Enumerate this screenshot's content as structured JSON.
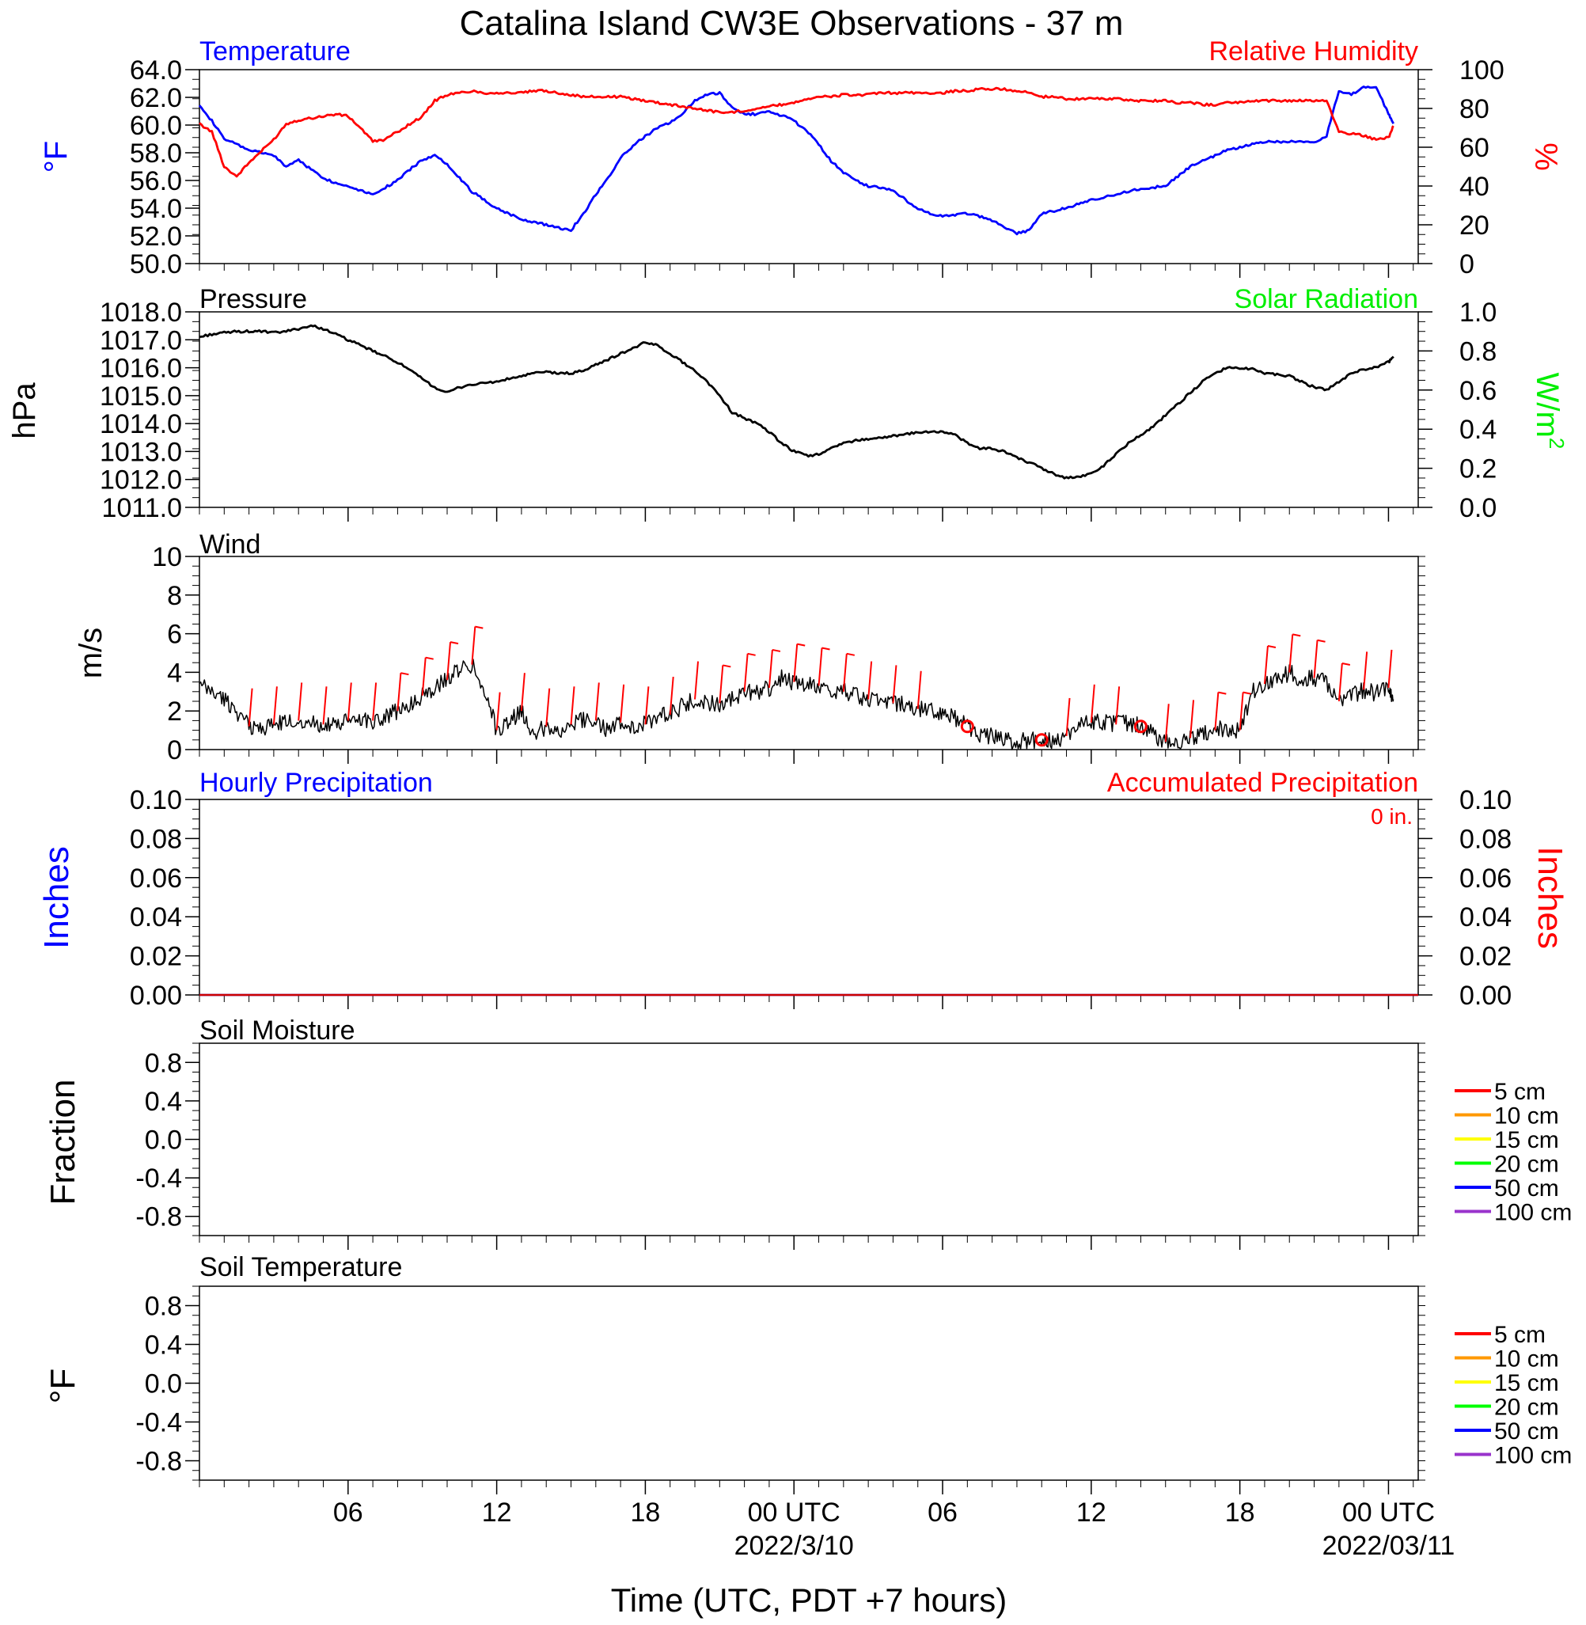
{
  "title": "Catalina Island CW3E Observations - 37 m",
  "xlabel": "Time (UTC, PDT +7 hours)",
  "time_axis": {
    "ticks": [
      {
        "h": 6,
        "label": "06",
        "date": ""
      },
      {
        "h": 12,
        "label": "12",
        "date": ""
      },
      {
        "h": 18,
        "label": "18",
        "date": ""
      },
      {
        "h": 24,
        "label": "00 UTC",
        "date": "2022/3/10"
      },
      {
        "h": 30,
        "label": "06",
        "date": ""
      },
      {
        "h": 36,
        "label": "12",
        "date": ""
      },
      {
        "h": 42,
        "label": "18",
        "date": ""
      },
      {
        "h": 48,
        "label": "00 UTC",
        "date": "2022/03/11"
      }
    ]
  },
  "chart_data": [
    {
      "panel": "temperature_rh",
      "type": "line",
      "left_title": "Temperature",
      "right_title": "Relative Humidity",
      "left_ylabel": "°F",
      "right_ylabel": "%",
      "left_ylim": [
        50,
        64
      ],
      "right_ylim": [
        0,
        100
      ],
      "left_ticks": [
        "50.0",
        "52.0",
        "54.0",
        "56.0",
        "58.0",
        "60.0",
        "62.0",
        "64.0"
      ],
      "right_ticks": [
        "0",
        "20",
        "40",
        "60",
        "80",
        "100"
      ],
      "x": [
        0,
        0.5,
        1,
        1.5,
        2,
        2.5,
        3,
        3.5,
        4,
        4.5,
        5,
        5.5,
        6,
        6.5,
        7,
        7.5,
        8,
        8.5,
        9,
        9.5,
        10,
        10.5,
        11,
        11.5,
        12,
        12.5,
        13,
        13.5,
        14,
        14.5,
        15,
        15.5,
        16,
        16.5,
        17,
        17.5,
        18,
        18.5,
        19,
        19.5,
        20,
        20.5,
        21,
        21.5,
        22,
        22.5,
        23,
        23.5,
        24,
        24.5,
        25,
        25.5,
        26,
        26.5,
        27,
        27.5,
        28,
        28.5,
        29,
        29.5,
        30,
        30.5,
        31,
        31.5,
        32,
        32.5,
        33,
        33.5,
        34,
        34.5,
        35,
        35.5,
        36,
        36.5,
        37,
        37.5,
        38,
        38.5,
        39,
        39.5,
        40,
        40.5,
        41,
        41.5,
        42,
        42.5,
        43,
        43.5,
        44,
        44.5,
        45,
        45.5,
        46,
        46.5,
        47,
        47.5,
        48,
        48.2
      ],
      "series": [
        {
          "name": "Temperature",
          "color": "#0000ff",
          "axis": "left",
          "values": [
            61.5,
            60.3,
            59.0,
            58.6,
            58.2,
            58.0,
            57.8,
            57.0,
            57.5,
            56.8,
            56.2,
            55.8,
            55.6,
            55.3,
            55.0,
            55.5,
            56.0,
            56.8,
            57.5,
            57.8,
            57.2,
            56.2,
            55.2,
            54.6,
            54.0,
            53.6,
            53.2,
            53.0,
            52.8,
            52.6,
            52.4,
            53.6,
            55.0,
            56.2,
            57.6,
            58.5,
            59.2,
            59.8,
            60.2,
            60.8,
            61.8,
            62.2,
            62.3,
            61.3,
            60.8,
            60.8,
            61.0,
            60.7,
            60.3,
            59.6,
            58.6,
            57.4,
            56.6,
            56.0,
            55.6,
            55.5,
            55.3,
            54.6,
            54.0,
            53.6,
            53.4,
            53.5,
            53.6,
            53.4,
            53.1,
            52.6,
            52.2,
            52.4,
            53.6,
            53.8,
            54.0,
            54.3,
            54.6,
            54.8,
            55.0,
            55.2,
            55.4,
            55.5,
            55.6,
            56.3,
            57.0,
            57.4,
            57.8,
            58.2,
            58.4,
            58.6,
            58.8,
            58.8,
            58.8,
            58.8,
            58.8,
            59.2,
            62.5,
            62.2,
            62.7,
            62.8,
            60.8,
            60.1
          ]
        },
        {
          "name": "Relative Humidity",
          "color": "#ff0000",
          "axis": "right",
          "values": [
            72,
            68,
            50,
            45,
            52,
            58,
            64,
            72,
            74,
            75,
            76,
            77,
            76,
            70,
            63,
            64,
            68,
            72,
            76,
            84,
            87,
            88,
            89,
            88,
            88,
            88,
            88,
            89,
            89,
            88,
            87,
            86,
            86,
            86,
            86,
            85,
            84,
            83,
            82,
            81,
            80,
            79,
            78,
            78,
            79,
            80,
            81,
            82,
            83,
            85,
            86,
            86,
            87,
            87,
            87,
            88,
            88,
            88,
            88,
            88,
            88,
            89,
            89,
            90,
            90,
            90,
            89,
            88,
            86,
            86,
            85,
            85,
            85,
            85,
            85,
            84,
            84,
            84,
            84,
            83,
            83,
            82,
            82,
            83,
            83,
            84,
            84,
            84,
            84,
            84,
            84,
            84,
            68,
            67,
            66,
            64,
            65,
            71
          ]
        }
      ]
    },
    {
      "panel": "pressure_solar",
      "type": "line",
      "left_title": "Pressure",
      "right_title": "Solar Radiation",
      "left_ylabel": "hPa",
      "right_ylabel": "W/m",
      "right_ylabel_sup": "2",
      "left_ylim": [
        1011,
        1018
      ],
      "right_ylim": [
        0,
        1
      ],
      "left_ticks": [
        "1011.0",
        "1012.0",
        "1013.0",
        "1014.0",
        "1015.0",
        "1016.0",
        "1017.0",
        "1018.0"
      ],
      "right_ticks": [
        "0.0",
        "0.2",
        "0.4",
        "0.6",
        "0.8",
        "1.0"
      ],
      "x": [
        0,
        0.5,
        1,
        1.5,
        2,
        2.5,
        3,
        3.5,
        4,
        4.5,
        5,
        5.5,
        6,
        6.5,
        7,
        7.5,
        8,
        8.5,
        9,
        9.5,
        10,
        10.5,
        11,
        11.5,
        12,
        12.5,
        13,
        13.5,
        14,
        14.5,
        15,
        15.5,
        16,
        16.5,
        17,
        17.5,
        18,
        18.5,
        19,
        19.5,
        20,
        20.5,
        21,
        21.5,
        22,
        22.5,
        23,
        23.5,
        24,
        24.5,
        25,
        25.5,
        26,
        26.5,
        27,
        27.5,
        28,
        28.5,
        29,
        29.5,
        30,
        30.5,
        31,
        31.5,
        32,
        32.5,
        33,
        33.5,
        34,
        34.5,
        35,
        35.5,
        36,
        36.5,
        37,
        37.5,
        38,
        38.5,
        39,
        39.5,
        40,
        40.5,
        41,
        41.5,
        42,
        42.5,
        43,
        43.5,
        44,
        44.5,
        45,
        45.5,
        46,
        46.5,
        47,
        47.5,
        48,
        48.2
      ],
      "series": [
        {
          "name": "Pressure",
          "color": "#000000",
          "axis": "left",
          "values": [
            1017.1,
            1017.2,
            1017.25,
            1017.3,
            1017.3,
            1017.3,
            1017.25,
            1017.3,
            1017.4,
            1017.5,
            1017.4,
            1017.2,
            1017.0,
            1016.8,
            1016.6,
            1016.4,
            1016.2,
            1015.9,
            1015.6,
            1015.3,
            1015.1,
            1015.3,
            1015.4,
            1015.45,
            1015.5,
            1015.6,
            1015.7,
            1015.8,
            1015.85,
            1015.8,
            1015.8,
            1015.9,
            1016.1,
            1016.3,
            1016.5,
            1016.7,
            1016.9,
            1016.8,
            1016.5,
            1016.2,
            1015.9,
            1015.5,
            1015.0,
            1014.4,
            1014.2,
            1014.0,
            1013.7,
            1013.3,
            1013.0,
            1012.85,
            1012.9,
            1013.1,
            1013.3,
            1013.4,
            1013.45,
            1013.5,
            1013.55,
            1013.6,
            1013.7,
            1013.7,
            1013.7,
            1013.6,
            1013.3,
            1013.1,
            1013.1,
            1013.0,
            1012.8,
            1012.6,
            1012.4,
            1012.2,
            1012.05,
            1012.1,
            1012.2,
            1012.5,
            1012.9,
            1013.3,
            1013.6,
            1013.9,
            1014.3,
            1014.7,
            1015.1,
            1015.5,
            1015.8,
            1016.0,
            1016.0,
            1015.95,
            1015.8,
            1015.75,
            1015.7,
            1015.5,
            1015.3,
            1015.2,
            1015.5,
            1015.8,
            1015.95,
            1016.0,
            1016.2,
            1016.4
          ]
        }
      ]
    },
    {
      "panel": "wind",
      "type": "line",
      "left_title": "Wind",
      "left_ylabel": "m/s",
      "left_ylim": [
        0,
        10
      ],
      "left_ticks": [
        "0",
        "2",
        "4",
        "6",
        "8",
        "10"
      ],
      "x": [
        0,
        0.5,
        1,
        1.5,
        2,
        2.5,
        3,
        3.5,
        4,
        4.5,
        5,
        5.5,
        6,
        6.5,
        7,
        7.5,
        8,
        8.5,
        9,
        9.5,
        10,
        10.5,
        11,
        11.5,
        12,
        12.5,
        13,
        13.5,
        14,
        14.5,
        15,
        15.5,
        16,
        16.5,
        17,
        17.5,
        18,
        18.5,
        19,
        19.5,
        20,
        20.5,
        21,
        21.5,
        22,
        22.5,
        23,
        23.5,
        24,
        24.5,
        25,
        25.5,
        26,
        26.5,
        27,
        27.5,
        28,
        28.5,
        29,
        29.5,
        30,
        30.5,
        31,
        31.5,
        32,
        32.5,
        33,
        33.5,
        34,
        34.5,
        35,
        35.5,
        36,
        36.5,
        37,
        37.5,
        38,
        38.5,
        39,
        39.5,
        40,
        40.5,
        41,
        41.5,
        42,
        42.5,
        43,
        43.5,
        44,
        44.5,
        45,
        45.5,
        46,
        46.5,
        47,
        47.5,
        48,
        48.2
      ],
      "series": [
        {
          "name": "Wind",
          "color": "#000000",
          "axis": "left",
          "values": [
            3.3,
            3.0,
            2.6,
            2.0,
            1.2,
            1.1,
            1.3,
            1.4,
            1.5,
            1.4,
            1.3,
            1.2,
            1.5,
            1.6,
            1.5,
            1.7,
            2.0,
            2.3,
            2.8,
            3.2,
            3.6,
            4.2,
            4.4,
            3.2,
            1.0,
            1.4,
            2.0,
            0.8,
            1.2,
            1.0,
            1.3,
            1.6,
            1.5,
            1.0,
            1.4,
            1.2,
            1.3,
            1.7,
            1.8,
            2.3,
            2.6,
            2.4,
            2.4,
            2.6,
            3.0,
            3.0,
            3.2,
            3.7,
            3.5,
            3.3,
            3.3,
            3.1,
            3.0,
            2.8,
            2.6,
            2.4,
            2.4,
            2.3,
            2.1,
            2.1,
            1.9,
            1.6,
            1.2,
            0.8,
            0.7,
            0.5,
            0.4,
            0.5,
            0.5,
            0.5,
            0.7,
            1.2,
            1.4,
            1.4,
            1.3,
            1.4,
            1.2,
            0.8,
            0.4,
            0.4,
            0.6,
            0.9,
            1.0,
            1.1,
            1.0,
            3.0,
            3.4,
            3.6,
            4.0,
            3.6,
            3.7,
            3.5,
            2.5,
            2.8,
            3.1,
            2.9,
            3.2,
            2.6
          ]
        }
      ],
      "barbs": [
        {
          "x": 2,
          "flag": false
        },
        {
          "x": 3,
          "flag": false
        },
        {
          "x": 4,
          "flag": false
        },
        {
          "x": 5,
          "flag": false
        },
        {
          "x": 6,
          "flag": false
        },
        {
          "x": 7,
          "flag": false
        },
        {
          "x": 8,
          "flag": true
        },
        {
          "x": 9,
          "flag": true
        },
        {
          "x": 10,
          "flag": true
        },
        {
          "x": 11,
          "flag": true
        },
        {
          "x": 12,
          "flag": false
        },
        {
          "x": 13,
          "flag": false
        },
        {
          "x": 14,
          "flag": false
        },
        {
          "x": 15,
          "flag": false
        },
        {
          "x": 16,
          "flag": false
        },
        {
          "x": 17,
          "flag": false
        },
        {
          "x": 18,
          "flag": false
        },
        {
          "x": 19,
          "flag": false
        },
        {
          "x": 20,
          "flag": false
        },
        {
          "x": 21,
          "flag": true
        },
        {
          "x": 22,
          "flag": true
        },
        {
          "x": 23,
          "flag": true
        },
        {
          "x": 24,
          "flag": true
        },
        {
          "x": 25,
          "flag": true
        },
        {
          "x": 26,
          "flag": true
        },
        {
          "x": 27,
          "flag": false
        },
        {
          "x": 28,
          "flag": false
        },
        {
          "x": 29,
          "flag": false
        },
        {
          "x": 31,
          "calm": true
        },
        {
          "x": 34,
          "calm": true
        },
        {
          "x": 38,
          "calm": true
        },
        {
          "x": 35,
          "flag": false
        },
        {
          "x": 36,
          "flag": false
        },
        {
          "x": 37,
          "flag": false
        },
        {
          "x": 39,
          "flag": false
        },
        {
          "x": 40,
          "flag": false
        },
        {
          "x": 41,
          "flag": true
        },
        {
          "x": 42,
          "flag": true
        },
        {
          "x": 43,
          "flag": true
        },
        {
          "x": 44,
          "flag": true
        },
        {
          "x": 45,
          "flag": true
        },
        {
          "x": 46,
          "flag": true
        },
        {
          "x": 47,
          "flag": false
        },
        {
          "x": 48,
          "flag": false
        }
      ]
    },
    {
      "panel": "precipitation",
      "type": "line",
      "left_title": "Hourly Precipitation",
      "right_title": "Accumulated Precipitation",
      "annotation": "0 in.",
      "left_ylabel": "Inches",
      "right_ylabel": "Inches",
      "left_ylim": [
        0,
        0.1
      ],
      "right_ylim": [
        0,
        0.1
      ],
      "left_ticks": [
        "0.00",
        "0.02",
        "0.04",
        "0.06",
        "0.08",
        "0.10"
      ],
      "right_ticks": [
        "0.00",
        "0.02",
        "0.04",
        "0.06",
        "0.08",
        "0.10"
      ],
      "series": [
        {
          "name": "Hourly Precipitation",
          "color": "#0000ff",
          "values": [
            0,
            0
          ]
        },
        {
          "name": "Accumulated Precipitation",
          "color": "#cc0000",
          "values": [
            0,
            0
          ]
        }
      ]
    },
    {
      "panel": "soil_moisture",
      "type": "line",
      "left_title": "Soil Moisture",
      "left_ylabel": "Fraction",
      "left_ylim": [
        -1,
        1
      ],
      "left_ticks": [
        "-0.8",
        "-0.4",
        "0.0",
        "0.4",
        "0.8"
      ],
      "legend": [
        {
          "label": "5 cm",
          "color": "#ff0000"
        },
        {
          "label": "10 cm",
          "color": "#ff9900"
        },
        {
          "label": "15 cm",
          "color": "#ffff00"
        },
        {
          "label": "20 cm",
          "color": "#00ff00"
        },
        {
          "label": "50 cm",
          "color": "#0000ff"
        },
        {
          "label": "100 cm",
          "color": "#9933cc"
        }
      ]
    },
    {
      "panel": "soil_temperature",
      "type": "line",
      "left_title": "Soil Temperature",
      "left_ylabel": "°F",
      "left_ylim": [
        -1,
        1
      ],
      "left_ticks": [
        "-0.8",
        "-0.4",
        "0.0",
        "0.4",
        "0.8"
      ],
      "legend": [
        {
          "label": "5 cm",
          "color": "#ff0000"
        },
        {
          "label": "10 cm",
          "color": "#ff9900"
        },
        {
          "label": "15 cm",
          "color": "#ffff00"
        },
        {
          "label": "20 cm",
          "color": "#00ff00"
        },
        {
          "label": "50 cm",
          "color": "#0000ff"
        },
        {
          "label": "100 cm",
          "color": "#9933cc"
        }
      ]
    }
  ]
}
